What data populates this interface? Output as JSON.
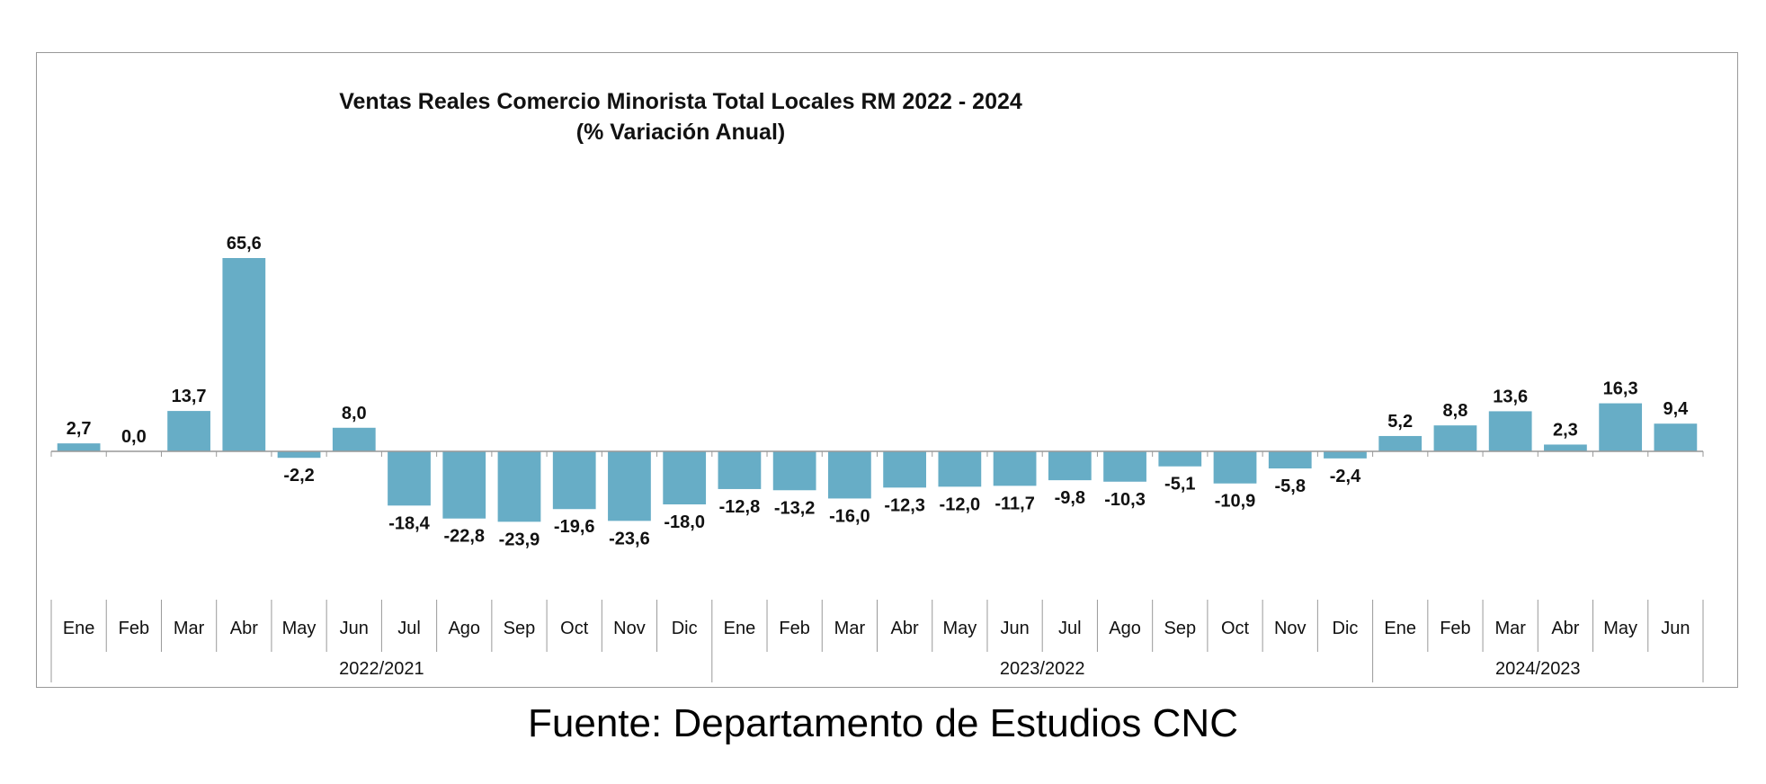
{
  "chart_data": {
    "type": "bar",
    "title": "Ventas Reales Comercio Minorista  Total Locales RM 2022 - 2024",
    "subtitle": "(% Variación Anual)",
    "categories": [
      "Ene",
      "Feb",
      "Mar",
      "Abr",
      "May",
      "Jun",
      "Jul",
      "Ago",
      "Sep",
      "Oct",
      "Nov",
      "Dic",
      "Ene",
      "Feb",
      "Mar",
      "Abr",
      "May",
      "Jun",
      "Jul",
      "Ago",
      "Sep",
      "Oct",
      "Nov",
      "Dic",
      "Ene",
      "Feb",
      "Mar",
      "Abr",
      "May",
      "Jun"
    ],
    "groups": [
      {
        "label": "2022/2021",
        "count": 12
      },
      {
        "label": "2023/2022",
        "count": 12
      },
      {
        "label": "2024/2023",
        "count": 6
      }
    ],
    "values": [
      2.7,
      0.0,
      13.7,
      65.6,
      -2.2,
      8.0,
      -18.4,
      -22.8,
      -23.9,
      -19.6,
      -23.6,
      -18.0,
      -12.8,
      -13.2,
      -16.0,
      -12.3,
      -12.0,
      -11.7,
      -9.8,
      -10.3,
      -5.1,
      -10.9,
      -5.8,
      -2.4,
      5.2,
      8.8,
      13.6,
      2.3,
      16.3,
      9.4
    ],
    "value_labels": [
      "2,7",
      "0,0",
      "13,7",
      "65,6",
      "-2,2",
      "8,0",
      "-18,4",
      "-22,8",
      "-23,9",
      "-19,6",
      "-23,6",
      "-18,0",
      "-12,8",
      "-13,2",
      "-16,0",
      "-12,3",
      "-12,0",
      "-11,7",
      "-9,8",
      "-10,3",
      "-5,1",
      "-10,9",
      "-5,8",
      "-2,4",
      "5,2",
      "8,8",
      "13,6",
      "2,3",
      "16,3",
      "9,4"
    ],
    "bar_color": "#67ADC6",
    "axis_color": "#999999",
    "grid": false,
    "legend": "none"
  },
  "source_text": "Fuente: Departamento de Estudios CNC"
}
